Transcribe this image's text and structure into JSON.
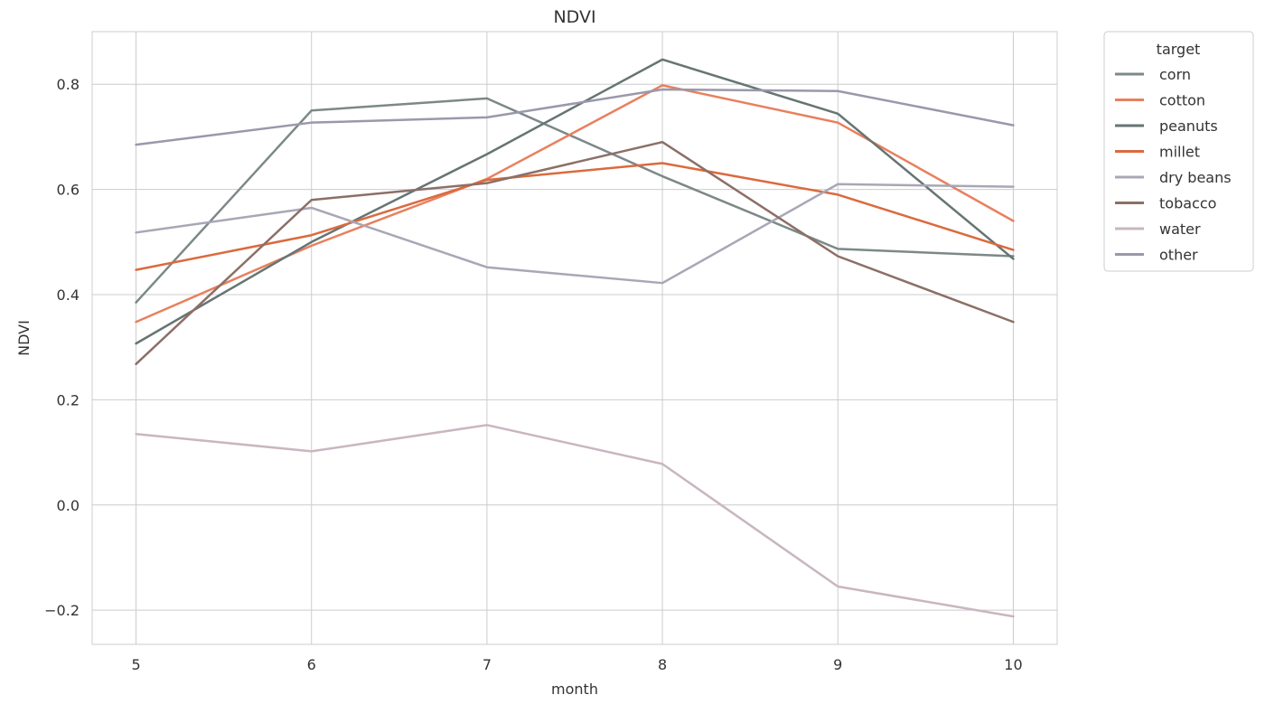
{
  "chart_data": {
    "type": "line",
    "title": "NDVI",
    "xlabel": "month",
    "ylabel": "NDVI",
    "x": [
      5,
      6,
      7,
      8,
      9,
      10
    ],
    "xlim": [
      4.75,
      10.25
    ],
    "ylim": [
      -0.265,
      0.9
    ],
    "xticks": [
      "5",
      "6",
      "7",
      "8",
      "9",
      "10"
    ],
    "yticks": [
      {
        "value": -0.2,
        "label": "−0.2"
      },
      {
        "value": 0.0,
        "label": "0.0"
      },
      {
        "value": 0.2,
        "label": "0.2"
      },
      {
        "value": 0.4,
        "label": "0.4"
      },
      {
        "value": 0.6,
        "label": "0.6"
      },
      {
        "value": 0.8,
        "label": "0.8"
      }
    ],
    "grid": true,
    "legend": {
      "title": "target",
      "placement": "outside-top-right"
    },
    "series": [
      {
        "name": "corn",
        "color": "#7d8888",
        "values": [
          0.385,
          0.75,
          0.773,
          0.625,
          0.487,
          0.473
        ]
      },
      {
        "name": "cotton",
        "color": "#e8805e",
        "values": [
          0.348,
          0.493,
          0.62,
          0.798,
          0.727,
          0.54
        ]
      },
      {
        "name": "peanuts",
        "color": "#667573",
        "values": [
          0.307,
          0.5,
          0.667,
          0.847,
          0.744,
          0.468
        ]
      },
      {
        "name": "millet",
        "color": "#db6a3e",
        "values": [
          0.447,
          0.513,
          0.618,
          0.65,
          0.59,
          0.485
        ]
      },
      {
        "name": "dry beans",
        "color": "#a8a7b6",
        "values": [
          0.518,
          0.565,
          0.452,
          0.422,
          0.61,
          0.605
        ]
      },
      {
        "name": "tobacco",
        "color": "#8c6f67",
        "values": [
          0.268,
          0.58,
          0.612,
          0.69,
          0.473,
          0.348
        ]
      },
      {
        "name": "water",
        "color": "#c9b6c1",
        "values": [
          0.135,
          0.102,
          0.152,
          0.078,
          -0.155,
          -0.212
        ]
      },
      {
        "name": "other",
        "color": "#9a98ab",
        "values": [
          0.685,
          0.727,
          0.737,
          0.79,
          0.787,
          0.722
        ]
      }
    ]
  }
}
